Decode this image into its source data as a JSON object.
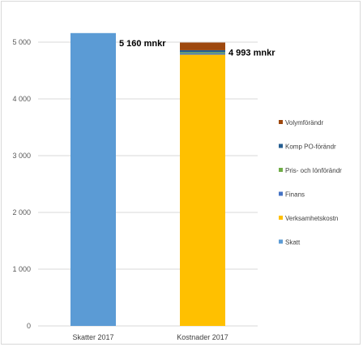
{
  "chart_data": {
    "type": "bar",
    "stacked": true,
    "categories": [
      "Skatter 2017",
      "Kostnader 2017"
    ],
    "series": [
      {
        "name": "Skatt",
        "color": "#5B9BD5",
        "values": [
          5160,
          0
        ]
      },
      {
        "name": "Verksamhetskostn",
        "color": "#FFC000",
        "values": [
          0,
          4780
        ]
      },
      {
        "name": "Finans",
        "color": "#4472C4",
        "values": [
          0,
          25
        ]
      },
      {
        "name": "Pris- och lönförändr",
        "color": "#70AD47",
        "values": [
          0,
          18
        ]
      },
      {
        "name": "Komp PO-förändr",
        "color": "#255E91",
        "values": [
          0,
          35
        ]
      },
      {
        "name": "Volymförändr",
        "color": "#9E480E",
        "values": [
          0,
          135
        ]
      }
    ],
    "totals_labels": [
      "5 160 mnkr",
      "4 993 mnkr"
    ],
    "yticks": [
      0,
      1000,
      2000,
      3000,
      4000,
      5000
    ],
    "ytick_labels": [
      "0",
      "1 000",
      "2 000",
      "3 000",
      "4 000",
      "5 000"
    ],
    "ylim": [
      0,
      5200
    ],
    "grid": true,
    "legend_position": "right",
    "legend_order": [
      "Volymförändr",
      "Komp PO-förändr",
      "Pris- och lönförändr",
      "Finans",
      "Verksamhetskostn",
      "Skatt"
    ]
  }
}
